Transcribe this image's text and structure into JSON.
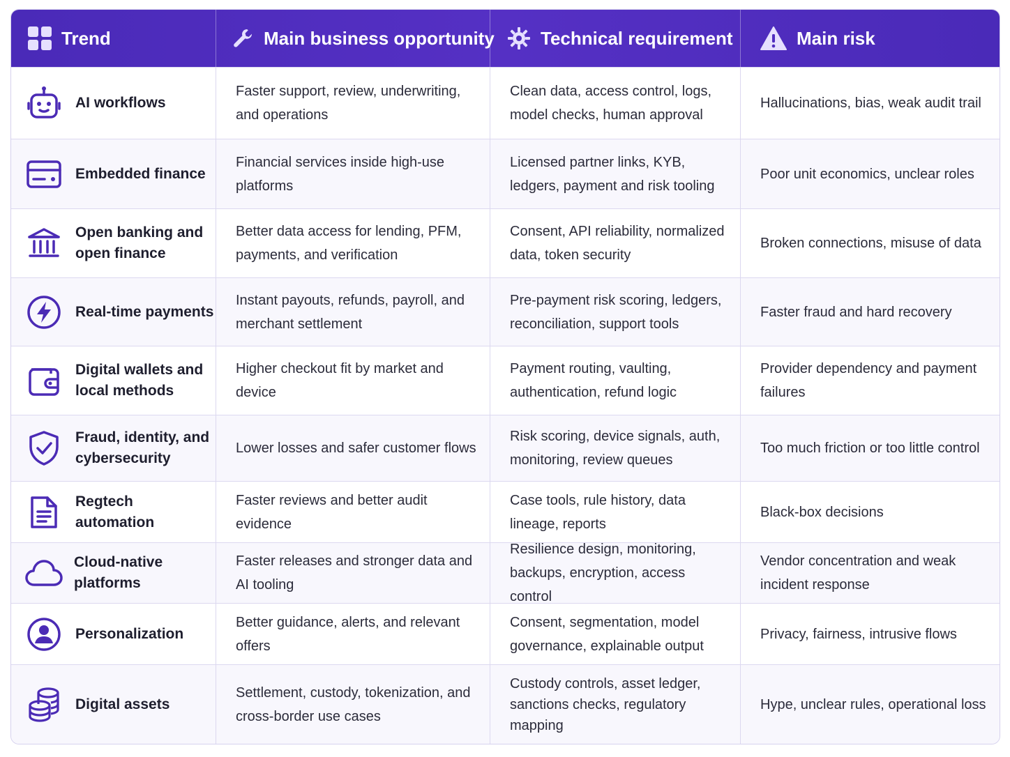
{
  "header": {
    "columns": [
      {
        "label": "Trend",
        "icon": "grid-icon"
      },
      {
        "label": "Main business opportunity",
        "icon": "wrench-icon"
      },
      {
        "label": "Technical requirement",
        "icon": "gear-icon"
      },
      {
        "label": "Main risk",
        "icon": "warning-icon"
      }
    ]
  },
  "colors": {
    "header_bg": "#4a2ab8",
    "icon_purple": "#4b2bb5",
    "border": "#dcd8f0"
  },
  "rows": [
    {
      "trend": "AI workflows",
      "icon": "robot-icon",
      "opportunity": "Faster support, review, underwriting, and operations",
      "requirement": "Clean data, access control, logs, model checks, human approval",
      "risk": "Hallucinations, bias, weak audit trail"
    },
    {
      "trend": "Embedded finance",
      "icon": "card-icon",
      "opportunity": "Financial services inside high-use platforms",
      "requirement": "Licensed partner links, KYB, ledgers, payment and risk tooling",
      "risk": "Poor unit economics, unclear roles"
    },
    {
      "trend": "Open banking and open finance",
      "icon": "bank-icon",
      "opportunity": "Better data access for lending, PFM, payments, and verification",
      "requirement": "Consent, API reliability, normalized data, token security",
      "risk": "Broken connections, misuse of data"
    },
    {
      "trend": "Real-time payments",
      "icon": "lightning-icon",
      "opportunity": "Instant payouts, refunds, payroll, and merchant settlement",
      "requirement": "Pre-payment risk scoring, ledgers, reconciliation, support tools",
      "risk": "Faster fraud and hard recovery"
    },
    {
      "trend": "Digital wallets and local methods",
      "icon": "wallet-icon",
      "opportunity": "Higher checkout fit by market and device",
      "requirement": "Payment routing, vaulting, authentication, refund logic",
      "risk": "Provider dependency and payment failures"
    },
    {
      "trend": "Fraud, identity, and cybersecurity",
      "icon": "shield-check-icon",
      "opportunity": "Lower losses and safer customer flows",
      "requirement": "Risk scoring, device signals, auth, monitoring, review queues",
      "risk": "Too much friction or too little control"
    },
    {
      "trend": "Regtech automation",
      "icon": "document-icon",
      "opportunity": "Faster reviews and better audit evidence",
      "requirement": "Case tools, rule history, data lineage, reports",
      "risk": "Black-box decisions"
    },
    {
      "trend": "Cloud-native platforms",
      "icon": "cloud-icon",
      "opportunity": "Faster releases and stronger data and AI tooling",
      "requirement": "Resilience design, monitoring, backups, encryption, access control",
      "risk": "Vendor concentration and weak incident response"
    },
    {
      "trend": "Personalization",
      "icon": "user-circle-icon",
      "opportunity": "Better guidance, alerts, and relevant offers",
      "requirement": "Consent, segmentation, model governance, explainable output",
      "risk": "Privacy, fairness, intrusive flows"
    },
    {
      "trend": "Digital assets",
      "icon": "coins-icon",
      "opportunity": "Settlement, custody, tokenization, and cross-border use cases",
      "requirement": "Custody controls, asset ledger, sanctions checks, regulatory mapping",
      "risk": "Hype, unclear rules, operational loss"
    }
  ]
}
